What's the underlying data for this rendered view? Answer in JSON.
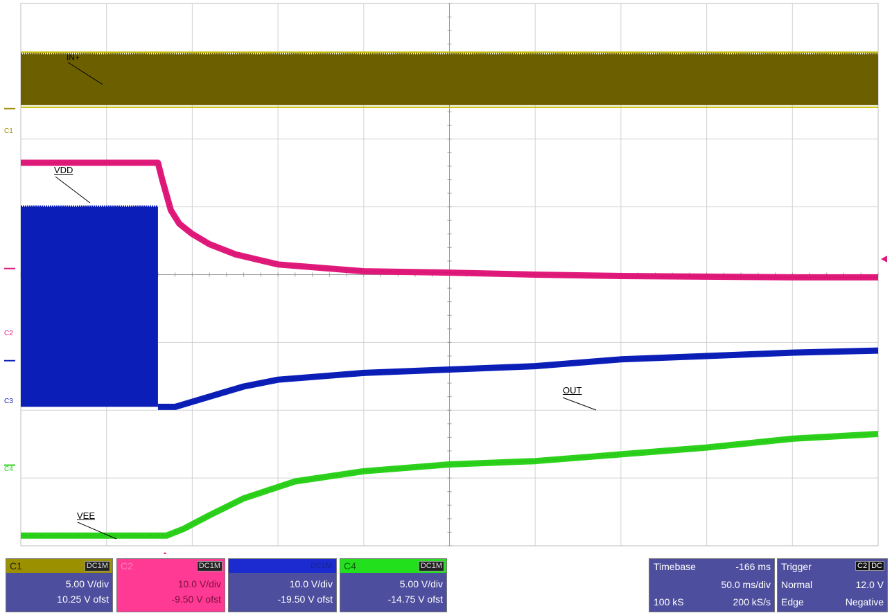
{
  "chart_data": {
    "type": "line",
    "title": "",
    "x_unit": "ms",
    "grid": {
      "x_divisions": 10,
      "y_divisions": 8
    },
    "series": [
      {
        "name": "IN+",
        "channel": "C1",
        "color": "#6b5f00",
        "band": {
          "top_div": 0.75,
          "bottom_div": 1.5
        }
      },
      {
        "name": "VDD",
        "channel": "C2",
        "color": "#e0197a",
        "x_div": [
          0,
          1.6,
          1.65,
          1.75,
          1.85,
          2,
          2.2,
          2.5,
          3,
          3.5,
          4,
          5,
          6,
          7,
          8,
          9,
          10
        ],
        "y_div": [
          2.35,
          2.35,
          2.6,
          3.05,
          3.25,
          3.4,
          3.55,
          3.7,
          3.85,
          3.9,
          3.95,
          3.97,
          4.0,
          4.02,
          4.03,
          4.04,
          4.04
        ]
      },
      {
        "name": "OUT",
        "channel": "C3",
        "color": "#0b1fb8",
        "band": {
          "x_start_div": 0,
          "x_end_div": 1.6,
          "top_div": 3.0,
          "bottom_div": 5.95
        },
        "x_div": [
          1.6,
          1.8,
          2.2,
          2.6,
          3,
          3.5,
          4,
          5,
          6,
          7,
          8,
          9,
          10
        ],
        "y_div": [
          5.95,
          5.95,
          5.8,
          5.65,
          5.55,
          5.5,
          5.45,
          5.4,
          5.35,
          5.25,
          5.2,
          5.15,
          5.12
        ]
      },
      {
        "name": "VEE",
        "channel": "C4",
        "color": "#2bd11a",
        "x_div": [
          0,
          1,
          1.7,
          1.9,
          2.2,
          2.6,
          3.2,
          4,
          5,
          6,
          7,
          8,
          9,
          10
        ],
        "y_div": [
          7.85,
          7.85,
          7.85,
          7.75,
          7.55,
          7.3,
          7.05,
          6.9,
          6.8,
          6.75,
          6.65,
          6.55,
          6.42,
          6.35
        ]
      }
    ]
  },
  "labels": {
    "in": "IN+",
    "vdd": "VDD",
    "out": "OUT",
    "vee": "VEE"
  },
  "ch_markers": {
    "c1": "C1",
    "c2": "C2",
    "c3": "C3",
    "c4": "C4"
  },
  "channels": [
    {
      "name": "C1",
      "coupling": "DC1M",
      "scale": "5.00 V/div",
      "offset": "10.25 V ofst",
      "color": "#9b9100"
    },
    {
      "name": "C2",
      "coupling": "DC1M",
      "scale": "10.0 V/div",
      "offset": "-9.50 V ofst",
      "color": "#ff3a95"
    },
    {
      "name": "C3",
      "coupling": "DC1M",
      "scale": "10.0 V/div",
      "offset": "-19.50 V ofst",
      "color": "#1c2bd0"
    },
    {
      "name": "C4",
      "coupling": "DC1M",
      "scale": "5.00 V/div",
      "offset": "-14.75 V ofst",
      "color": "#22e01c"
    }
  ],
  "timebase": {
    "label": "Timebase",
    "delay": "-166 ms",
    "scale": "50.0 ms/div",
    "samples": "100 kS",
    "rate": "200 kS/s"
  },
  "trigger": {
    "label": "Trigger",
    "source": "C2",
    "coupling": "DC",
    "mode": "Normal",
    "level": "12.0 V",
    "type": "Edge",
    "slope": "Negative"
  }
}
